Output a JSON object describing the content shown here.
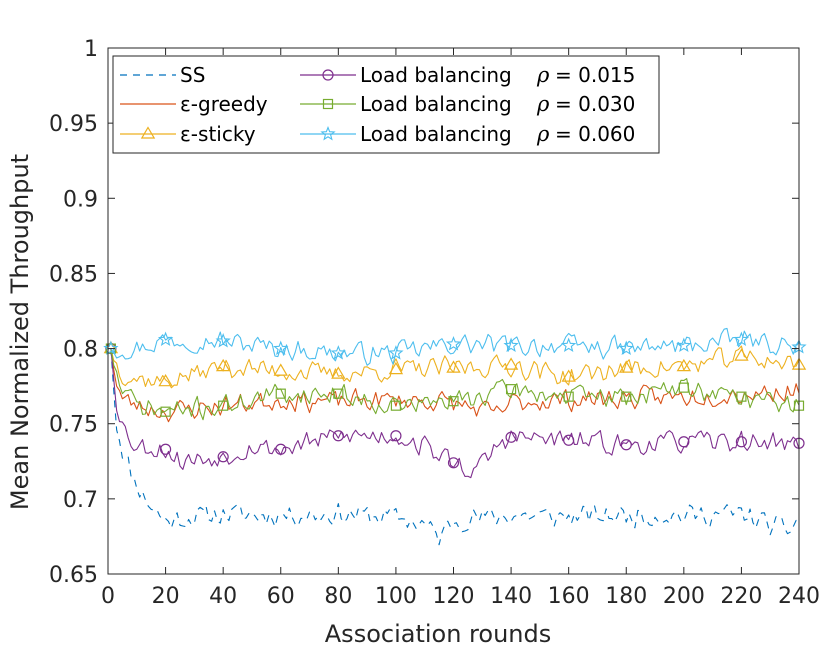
{
  "chart_data": {
    "type": "line",
    "title": "",
    "xlabel": "Association rounds",
    "ylabel": "Mean Normalized Throughput",
    "xlim": [
      0,
      240
    ],
    "ylim": [
      0.65,
      1.0
    ],
    "xticks": [
      "0",
      "20",
      "40",
      "60",
      "80",
      "100",
      "120",
      "140",
      "160",
      "180",
      "200",
      "220",
      "240"
    ],
    "yticks": [
      "0.65",
      "0.7",
      "0.75",
      "0.8",
      "0.85",
      "0.9",
      "0.95",
      "1"
    ],
    "grid": false,
    "legend_position": "top-left",
    "rho_symbol": "ρ",
    "series": [
      {
        "name": "SS",
        "rho": "",
        "color": "#0072BD",
        "style": "dashed",
        "marker": "none",
        "keypoints": [
          [
            1,
            0.8
          ],
          [
            3,
            0.75
          ],
          [
            5,
            0.733
          ],
          [
            8,
            0.718
          ],
          [
            12,
            0.703
          ],
          [
            16,
            0.693
          ],
          [
            20,
            0.685
          ],
          [
            30,
            0.688
          ],
          [
            40,
            0.69
          ],
          [
            60,
            0.689
          ],
          [
            80,
            0.69
          ],
          [
            100,
            0.688
          ],
          [
            110,
            0.683
          ],
          [
            115,
            0.674
          ],
          [
            120,
            0.686
          ],
          [
            140,
            0.689
          ],
          [
            160,
            0.688
          ],
          [
            180,
            0.689
          ],
          [
            200,
            0.689
          ],
          [
            220,
            0.69
          ],
          [
            235,
            0.679
          ],
          [
            240,
            0.685
          ]
        ],
        "noise": 0.006,
        "seed": 11
      },
      {
        "name": "ε-greedy",
        "rho": "",
        "color": "#D95319",
        "style": "solid",
        "marker": "none",
        "keypoints": [
          [
            1,
            0.8
          ],
          [
            3,
            0.778
          ],
          [
            5,
            0.766
          ],
          [
            10,
            0.762
          ],
          [
            20,
            0.758
          ],
          [
            40,
            0.762
          ],
          [
            60,
            0.766
          ],
          [
            80,
            0.765
          ],
          [
            100,
            0.766
          ],
          [
            120,
            0.764
          ],
          [
            135,
            0.756
          ],
          [
            140,
            0.764
          ],
          [
            160,
            0.766
          ],
          [
            180,
            0.767
          ],
          [
            200,
            0.768
          ],
          [
            220,
            0.77
          ],
          [
            240,
            0.772
          ]
        ],
        "noise": 0.006,
        "seed": 23
      },
      {
        "name": "ε-sticky",
        "rho": "",
        "color": "#EDB120",
        "style": "solid",
        "marker": "triangle",
        "marker_x": [
          1,
          20,
          40,
          60,
          80,
          100,
          120,
          140,
          160,
          180,
          200,
          220,
          240
        ],
        "keypoints": [
          [
            1,
            0.8
          ],
          [
            4,
            0.785
          ],
          [
            10,
            0.78
          ],
          [
            20,
            0.778
          ],
          [
            40,
            0.788
          ],
          [
            60,
            0.785
          ],
          [
            80,
            0.783
          ],
          [
            100,
            0.786
          ],
          [
            120,
            0.787
          ],
          [
            140,
            0.789
          ],
          [
            160,
            0.781
          ],
          [
            180,
            0.787
          ],
          [
            200,
            0.788
          ],
          [
            220,
            0.795
          ],
          [
            240,
            0.789
          ]
        ],
        "noise": 0.006,
        "seed": 37
      },
      {
        "name": "Load balancing",
        "rho": "= 0.015",
        "color": "#7E2F8E",
        "style": "solid",
        "marker": "circle",
        "marker_x": [
          1,
          20,
          40,
          60,
          80,
          100,
          120,
          140,
          160,
          180,
          200,
          220,
          240
        ],
        "keypoints": [
          [
            1,
            0.8
          ],
          [
            3,
            0.765
          ],
          [
            6,
            0.745
          ],
          [
            10,
            0.735
          ],
          [
            20,
            0.733
          ],
          [
            25,
            0.725
          ],
          [
            40,
            0.728
          ],
          [
            50,
            0.735
          ],
          [
            60,
            0.733
          ],
          [
            80,
            0.742
          ],
          [
            100,
            0.742
          ],
          [
            110,
            0.735
          ],
          [
            120,
            0.724
          ],
          [
            128,
            0.718
          ],
          [
            135,
            0.735
          ],
          [
            140,
            0.741
          ],
          [
            160,
            0.739
          ],
          [
            180,
            0.736
          ],
          [
            200,
            0.738
          ],
          [
            220,
            0.738
          ],
          [
            240,
            0.737
          ]
        ],
        "noise": 0.006,
        "seed": 53
      },
      {
        "name": "Load balancing",
        "rho": "= 0.030",
        "color": "#77AC30",
        "style": "solid",
        "marker": "square",
        "marker_x": [
          1,
          20,
          40,
          60,
          80,
          100,
          120,
          140,
          160,
          180,
          200,
          220,
          240
        ],
        "keypoints": [
          [
            1,
            0.8
          ],
          [
            4,
            0.775
          ],
          [
            10,
            0.762
          ],
          [
            20,
            0.758
          ],
          [
            40,
            0.762
          ],
          [
            60,
            0.77
          ],
          [
            80,
            0.77
          ],
          [
            100,
            0.762
          ],
          [
            120,
            0.765
          ],
          [
            140,
            0.773
          ],
          [
            160,
            0.768
          ],
          [
            180,
            0.768
          ],
          [
            200,
            0.774
          ],
          [
            220,
            0.768
          ],
          [
            240,
            0.762
          ]
        ],
        "noise": 0.006,
        "seed": 71
      },
      {
        "name": "Load balancing",
        "rho": "= 0.060",
        "color": "#4DBEEE",
        "style": "solid",
        "marker": "star",
        "marker_x": [
          1,
          20,
          40,
          60,
          80,
          100,
          120,
          140,
          160,
          180,
          200,
          220,
          240
        ],
        "keypoints": [
          [
            1,
            0.8
          ],
          [
            10,
            0.8
          ],
          [
            20,
            0.806
          ],
          [
            40,
            0.805
          ],
          [
            60,
            0.8
          ],
          [
            80,
            0.797
          ],
          [
            100,
            0.797
          ],
          [
            120,
            0.803
          ],
          [
            140,
            0.802
          ],
          [
            160,
            0.802
          ],
          [
            180,
            0.8
          ],
          [
            200,
            0.802
          ],
          [
            220,
            0.806
          ],
          [
            240,
            0.801
          ]
        ],
        "noise": 0.006,
        "seed": 97
      }
    ]
  }
}
